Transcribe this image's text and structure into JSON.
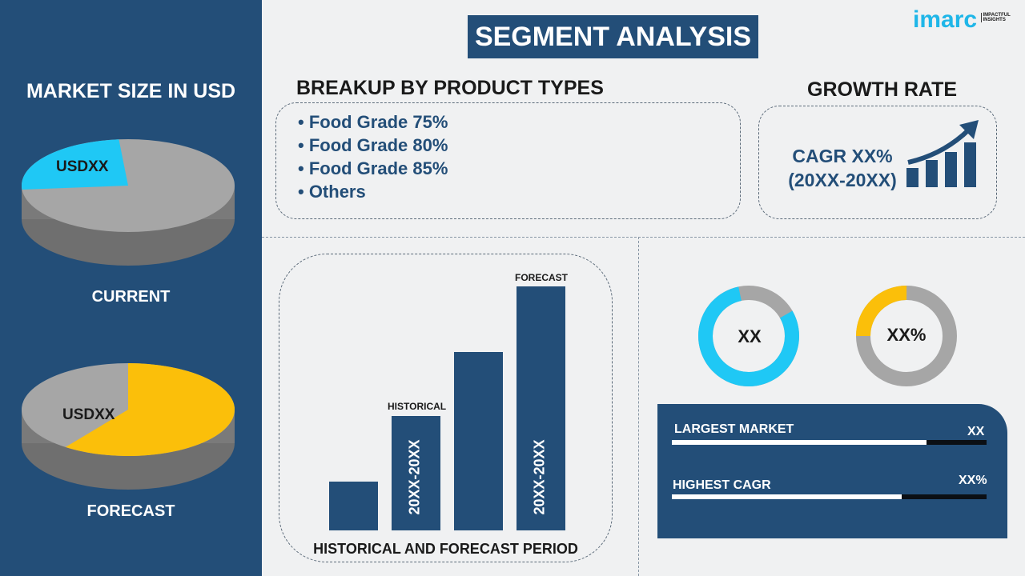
{
  "title": "SEGMENT ANALYSIS",
  "logo": {
    "brand": "imarc",
    "tagline": "IMPACTFUL INSIGHTS"
  },
  "market_size": {
    "heading": "MARKET SIZE IN USD",
    "current": {
      "label": "CURRENT",
      "value": "USDXX",
      "highlight_share": 0.25,
      "highlight_color": "#1fc8f5"
    },
    "forecast": {
      "label": "FORECAST",
      "value": "USDXX",
      "highlight_share": 0.6,
      "highlight_color": "#fbbf0a"
    }
  },
  "breakup": {
    "heading": "BREAKUP BY PRODUCT TYPES",
    "items": [
      "• Food Grade 75%",
      "• Food Grade 80%",
      "• Food Grade 85%",
      "• Others"
    ]
  },
  "growth": {
    "heading": "GROWTH RATE",
    "cagr": "CAGR XX%",
    "period": "(20XX-20XX)"
  },
  "period_chart": {
    "caption": "HISTORICAL AND FORECAST PERIOD",
    "historical_label": "HISTORICAL",
    "forecast_label": "FORECAST",
    "historical_range": "20XX-20XX",
    "forecast_range": "20XX-20XX",
    "relative_heights": [
      0.2,
      0.47,
      0.73,
      1.0
    ]
  },
  "donuts": [
    {
      "value": "XX",
      "share": 0.8,
      "color": "#1fc8f5"
    },
    {
      "value": "XX%",
      "share": 0.25,
      "color": "#fbbf0a"
    }
  ],
  "stats": [
    {
      "label": "LARGEST MARKET",
      "value": "XX",
      "fill": 0.81
    },
    {
      "label": "HIGHEST CAGR",
      "value": "XX%",
      "fill": 0.73
    }
  ],
  "colors": {
    "navy": "#234e78",
    "cyan": "#1fc8f5",
    "yellow": "#fbbf0a",
    "gray": "#a6a6a6"
  }
}
